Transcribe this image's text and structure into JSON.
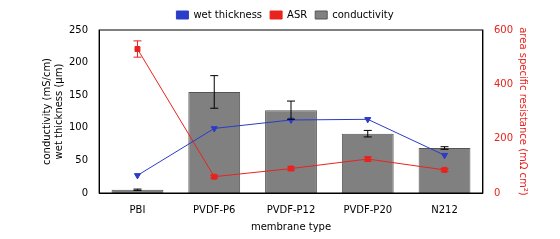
{
  "chart_data": {
    "type": "bar",
    "categories": [
      "PBI",
      "PVDF-P6",
      "PVDF-P12",
      "PVDF-P20",
      "N212"
    ],
    "x_label": "membrane type",
    "y_label": [
      "conductivity (mS/cm)",
      "wet thickness (µm)"
    ],
    "y2_label": "area specific resistance (mΩ cm²)",
    "ylim": [
      0,
      250
    ],
    "yticks": [
      0,
      50,
      100,
      150,
      200,
      250
    ],
    "y2lim": [
      0,
      600
    ],
    "y2ticks": [
      0,
      200,
      400,
      600
    ],
    "grid": false,
    "legend": "top",
    "series": [
      {
        "name": "conductivity",
        "type": "bar",
        "color": "#808080",
        "values": [
          5,
          155,
          127,
          91,
          69
        ],
        "errors": [
          1,
          25,
          14,
          5,
          2
        ]
      },
      {
        "name": "wet thickness",
        "type": "line",
        "color": "#2a3cc8",
        "marker": "triangle_down",
        "values": [
          27,
          99,
          112,
          113,
          58
        ]
      },
      {
        "name": "ASR",
        "type": "line",
        "color": "#e8231f",
        "marker": "square",
        "axis": "y2",
        "values": [
          530,
          60,
          90,
          125,
          85
        ],
        "errors": [
          30,
          5,
          6,
          8,
          5
        ]
      }
    ]
  }
}
